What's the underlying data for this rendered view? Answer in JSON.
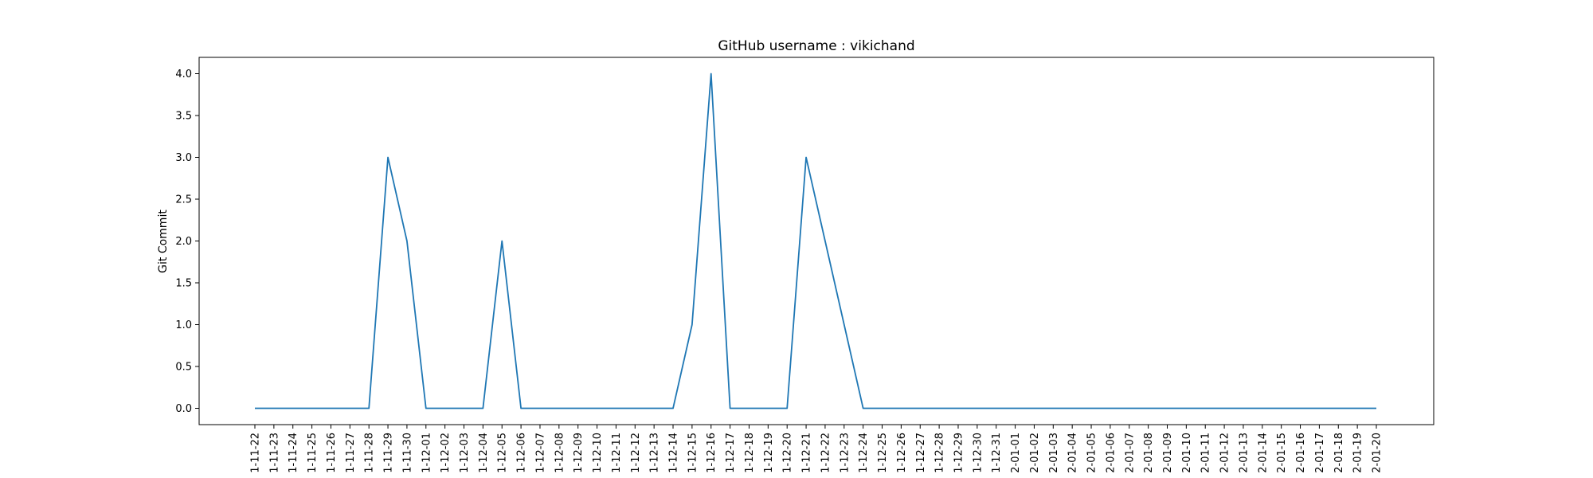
{
  "chart_data": {
    "type": "line",
    "title": "GitHub username : vikichand",
    "xlabel": "",
    "ylabel": "Git Commit",
    "x": [
      "2021-11-22",
      "2021-11-23",
      "2021-11-24",
      "2021-11-25",
      "2021-11-26",
      "2021-11-27",
      "2021-11-28",
      "2021-11-29",
      "2021-11-30",
      "2021-12-01",
      "2021-12-02",
      "2021-12-03",
      "2021-12-04",
      "2021-12-05",
      "2021-12-06",
      "2021-12-07",
      "2021-12-08",
      "2021-12-09",
      "2021-12-10",
      "2021-12-11",
      "2021-12-12",
      "2021-12-13",
      "2021-12-14",
      "2021-12-15",
      "2021-12-16",
      "2021-12-17",
      "2021-12-18",
      "2021-12-19",
      "2021-12-20",
      "2021-12-21",
      "2021-12-22",
      "2021-12-23",
      "2021-12-24",
      "2021-12-25",
      "2021-12-26",
      "2021-12-27",
      "2021-12-28",
      "2021-12-29",
      "2021-12-30",
      "2021-12-31",
      "2022-01-01",
      "2022-01-02",
      "2022-01-03",
      "2022-01-04",
      "2022-01-05",
      "2022-01-06",
      "2022-01-07",
      "2022-01-08",
      "2022-01-09",
      "2022-01-10",
      "2022-01-11",
      "2022-01-12",
      "2022-01-13",
      "2022-01-14",
      "2022-01-15",
      "2022-01-16",
      "2022-01-17",
      "2022-01-18",
      "2022-01-19",
      "2022-01-20"
    ],
    "tick_labels": [
      "1-11-22",
      "1-11-23",
      "1-11-24",
      "1-11-25",
      "1-11-26",
      "1-11-27",
      "1-11-28",
      "1-11-29",
      "1-11-30",
      "1-12-01",
      "1-12-02",
      "1-12-03",
      "1-12-04",
      "1-12-05",
      "1-12-06",
      "1-12-07",
      "1-12-08",
      "1-12-09",
      "1-12-10",
      "1-12-11",
      "1-12-12",
      "1-12-13",
      "1-12-14",
      "1-12-15",
      "1-12-16",
      "1-12-17",
      "1-12-18",
      "1-12-19",
      "1-12-20",
      "1-12-21",
      "1-12-22",
      "1-12-23",
      "1-12-24",
      "1-12-25",
      "1-12-26",
      "1-12-27",
      "1-12-28",
      "1-12-29",
      "1-12-30",
      "1-12-31",
      "2-01-01",
      "2-01-02",
      "2-01-03",
      "2-01-04",
      "2-01-05",
      "2-01-06",
      "2-01-07",
      "2-01-08",
      "2-01-09",
      "2-01-10",
      "2-01-11",
      "2-01-12",
      "2-01-13",
      "2-01-14",
      "2-01-15",
      "2-01-16",
      "2-01-17",
      "2-01-18",
      "2-01-19",
      "2-01-20"
    ],
    "series": [
      {
        "values": [
          0,
          0,
          0,
          0,
          0,
          0,
          0,
          3,
          2,
          0,
          0,
          0,
          0,
          2,
          0,
          0,
          0,
          0,
          0,
          0,
          0,
          0,
          0,
          1,
          4,
          0,
          0,
          0,
          0,
          3,
          2,
          1,
          0,
          0,
          0,
          0,
          0,
          0,
          0,
          0,
          0,
          0,
          0,
          0,
          0,
          0,
          0,
          0,
          0,
          0,
          0,
          0,
          0,
          0,
          0,
          0,
          0,
          0,
          0,
          0
        ],
        "color": "#1f77b4"
      }
    ],
    "ylim": [
      0,
      4
    ],
    "yticks": [
      "0.0",
      "0.5",
      "1.0",
      "1.5",
      "2.0",
      "2.5",
      "3.0",
      "3.5",
      "4.0"
    ],
    "grid": false,
    "legend": "none"
  }
}
